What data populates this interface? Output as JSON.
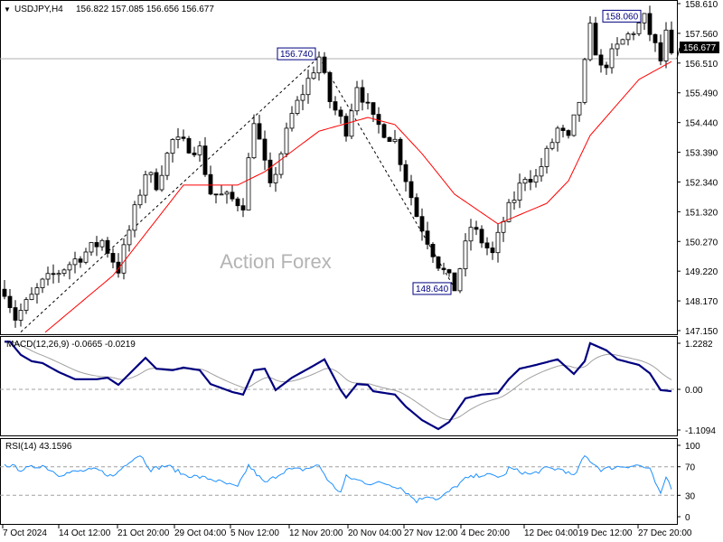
{
  "header": {
    "symbol": "USDJPY,H4",
    "ohlc": "156.822 157.085 156.656 156.677"
  },
  "watermark": "Action Forex",
  "colors": {
    "ma": "#ff0000",
    "macd": "#000080",
    "signal": "#a0a0a0",
    "rsi": "#1e90ff",
    "candle": "#000000"
  },
  "chart_data": [
    {
      "type": "candlestick",
      "title": "USDJPY,H4",
      "current_price": "156.677",
      "ylim": [
        147.15,
        158.61
      ],
      "y_ticks": [
        "158.610",
        "157.560",
        "156.510",
        "155.490",
        "154.440",
        "153.390",
        "152.340",
        "151.320",
        "150.270",
        "149.220",
        "148.170",
        "147.150"
      ],
      "price_keypoints": [
        [
          0,
          148.6
        ],
        [
          2,
          147.6
        ],
        [
          7,
          148.8
        ],
        [
          12,
          149.5
        ],
        [
          18,
          150.3
        ],
        [
          21,
          149.3
        ],
        [
          26,
          152.7
        ],
        [
          28,
          152.3
        ],
        [
          31,
          153.8
        ],
        [
          36,
          153.5
        ],
        [
          38,
          152.0
        ],
        [
          44,
          151.6
        ],
        [
          46,
          154.6
        ],
        [
          49,
          152.1
        ],
        [
          53,
          154.7
        ],
        [
          58,
          156.74
        ],
        [
          60,
          155.2
        ],
        [
          63,
          154.2
        ],
        [
          65,
          155.8
        ],
        [
          68,
          154.5
        ],
        [
          72,
          153.8
        ],
        [
          76,
          151.2
        ],
        [
          80,
          149.5
        ],
        [
          83,
          148.64
        ],
        [
          86,
          150.8
        ],
        [
          90,
          149.8
        ],
        [
          92,
          151.0
        ],
        [
          96,
          152.6
        ],
        [
          98,
          152.5
        ],
        [
          102,
          154.2
        ],
        [
          104,
          153.8
        ],
        [
          106,
          155.2
        ],
        [
          108,
          157.7
        ],
        [
          110,
          156.3
        ],
        [
          114,
          157.3
        ],
        [
          118,
          158.06
        ],
        [
          121,
          156.6
        ],
        [
          122,
          157.5
        ],
        [
          123,
          156.68
        ]
      ],
      "ma_keypoints": [
        [
          7.5,
          147.09
        ],
        [
          20,
          149.08
        ],
        [
          33,
          152.25
        ],
        [
          43,
          152.25
        ],
        [
          48,
          152.72
        ],
        [
          58,
          154.14
        ],
        [
          67,
          154.62
        ],
        [
          72,
          154.37
        ],
        [
          77,
          153.35
        ],
        [
          83,
          151.93
        ],
        [
          91,
          150.89
        ],
        [
          100,
          151.61
        ],
        [
          104,
          152.4
        ],
        [
          108,
          153.99
        ],
        [
          117,
          155.95
        ],
        [
          123,
          156.58
        ]
      ],
      "annotations": [
        {
          "bar": 58,
          "label": "156.740"
        },
        {
          "bar": 118,
          "label": "158.060"
        },
        {
          "bar": 83,
          "label": "148.640"
        }
      ],
      "zigzag": [
        [
          3,
          147.1
        ],
        [
          58,
          156.74
        ],
        [
          83,
          148.64
        ]
      ]
    },
    {
      "type": "line",
      "title": "MACD(12,26,9) -0.0665 -0.0219",
      "ylim": [
        -1.1094,
        1.2282
      ],
      "y_ticks": [
        "1.2282",
        "0.00",
        "-1.1094"
      ],
      "macd": [
        [
          1,
          1.27
        ],
        [
          3,
          0.92
        ],
        [
          5,
          0.75
        ],
        [
          7,
          0.7
        ],
        [
          10,
          0.46
        ],
        [
          13,
          0.27
        ],
        [
          17,
          0.27
        ],
        [
          19,
          0.31
        ],
        [
          21,
          0.12
        ],
        [
          23,
          0.41
        ],
        [
          26,
          0.84
        ],
        [
          28,
          0.55
        ],
        [
          31,
          0.51
        ],
        [
          33,
          0.58
        ],
        [
          36,
          0.51
        ],
        [
          38,
          0.14
        ],
        [
          42,
          -0.07
        ],
        [
          44,
          -0.14
        ],
        [
          46,
          0.51
        ],
        [
          48,
          0.55
        ],
        [
          50,
          -0.02
        ],
        [
          53,
          0.31
        ],
        [
          57,
          0.63
        ],
        [
          59,
          0.8
        ],
        [
          62,
          -0.02
        ],
        [
          63,
          -0.22
        ],
        [
          65,
          0.14
        ],
        [
          67,
          0.12
        ],
        [
          68,
          -0.05
        ],
        [
          72,
          -0.14
        ],
        [
          74,
          -0.46
        ],
        [
          77,
          -0.82
        ],
        [
          80,
          -1.06
        ],
        [
          82,
          -0.87
        ],
        [
          85,
          -0.24
        ],
        [
          88,
          -0.14
        ],
        [
          91,
          -0.1
        ],
        [
          93,
          0.27
        ],
        [
          95,
          0.55
        ],
        [
          98,
          0.65
        ],
        [
          102,
          0.8
        ],
        [
          105,
          0.41
        ],
        [
          107,
          0.75
        ],
        [
          108,
          1.23
        ],
        [
          111,
          1.04
        ],
        [
          113,
          0.8
        ],
        [
          117,
          0.65
        ],
        [
          119,
          0.43
        ],
        [
          121,
          -0.02
        ],
        [
          123,
          -0.05
        ]
      ]
    },
    {
      "type": "line",
      "title": "RSI(14) 43.1596",
      "ylim": [
        0,
        100
      ],
      "y_ticks": [
        "100",
        "70",
        "30",
        "0"
      ],
      "rsi": [
        [
          1,
          72
        ],
        [
          3,
          66
        ],
        [
          7,
          72
        ],
        [
          10,
          59
        ],
        [
          13,
          63
        ],
        [
          17,
          66
        ],
        [
          20,
          56
        ],
        [
          23,
          78
        ],
        [
          25,
          87
        ],
        [
          27,
          66
        ],
        [
          30,
          72
        ],
        [
          33,
          59
        ],
        [
          38,
          53
        ],
        [
          43,
          41
        ],
        [
          45,
          72
        ],
        [
          48,
          47
        ],
        [
          52,
          66
        ],
        [
          55,
          66
        ],
        [
          58,
          72
        ],
        [
          60,
          47
        ],
        [
          62,
          34
        ],
        [
          63,
          56
        ],
        [
          67,
          47
        ],
        [
          70,
          47
        ],
        [
          73,
          41
        ],
        [
          76,
          22
        ],
        [
          78,
          30
        ],
        [
          80,
          24
        ],
        [
          83,
          41
        ],
        [
          85,
          53
        ],
        [
          88,
          59
        ],
        [
          92,
          56
        ],
        [
          93,
          68
        ],
        [
          97,
          59
        ],
        [
          100,
          68
        ],
        [
          103,
          66
        ],
        [
          105,
          56
        ],
        [
          107,
          85
        ],
        [
          110,
          66
        ],
        [
          113,
          70
        ],
        [
          117,
          72
        ],
        [
          119,
          66
        ],
        [
          121,
          30
        ],
        [
          122,
          56
        ],
        [
          123,
          41
        ]
      ]
    }
  ],
  "x_ticks": [
    "7 Oct 2024",
    "14 Oct 12:00",
    "21 Oct 20:00",
    "29 Oct 04:00",
    "5 Nov 12:00",
    "12 Nov 20:00",
    "20 Nov 04:00",
    "27 Nov 12:00",
    "4 Dec 20:00",
    "12 Dec 04:00",
    "19 Dec 12:00",
    "27 Dec 20:00"
  ]
}
